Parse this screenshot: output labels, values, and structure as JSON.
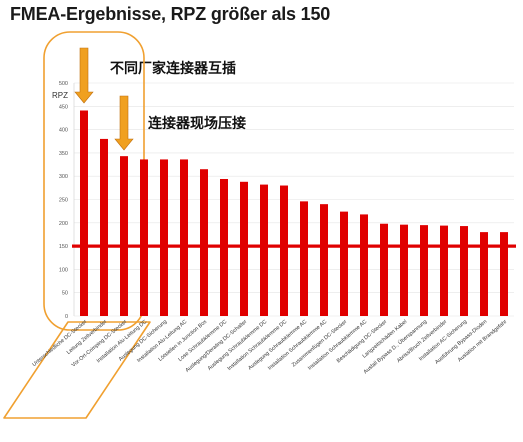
{
  "title": "FMEA-Ergebnisse, RPZ größer als  150",
  "annotations": {
    "connector_mix": "不同厂家连接器互插",
    "field_crimp": "连接器现场压接"
  },
  "colors": {
    "bar": "#e00000",
    "threshold": "#e00000",
    "highlight": "#f0a030",
    "arrow": "#f0a020"
  },
  "chart_data": {
    "type": "bar",
    "title": "FMEA-Ergebnisse, RPZ größer als  150",
    "ylabel": "RPZ",
    "xlabel": "",
    "ylim": [
      0,
      500
    ],
    "yticks": [
      0,
      50,
      100,
      150,
      200,
      250,
      300,
      350,
      400,
      450,
      500
    ],
    "grid": true,
    "threshold": 150,
    "categories": [
      "Unterschiedliche DC-Stecker",
      "Leitung Zellverbinder",
      "Vor-Ort-Crimping DC-Stecker",
      "Installation Alu-Leitung DC",
      "Auslegung DC-Sicherung",
      "Installation Alu-Leitung AC",
      "Lötstellen in Junction Box",
      "Lose Schraubklemme DC",
      "Auslegung/Derating DC-Schalter",
      "Auslegung Schraubklemme DC",
      "Installation Schraubklemme DC",
      "Auslegung Schraubklemme AC",
      "Installation Schraubklemme AC",
      "Zusammenfügen DC-Stecker",
      "Installation Schraubklemme AC",
      "Beschädigung DC-Stecker",
      "Langzeitschäden Kabel",
      "Ausfall Bypass D., Überspannung",
      "Abriss/Bruch Zellverbinder",
      "Installation AC-Sicherung",
      "Ausführung Bypass-Dioden",
      "Auslation mit Brandgefahr"
    ],
    "values": [
      441,
      380,
      343,
      336,
      336,
      336,
      315,
      294,
      288,
      282,
      280,
      246,
      240,
      224,
      218,
      198,
      196,
      195,
      194,
      193,
      180,
      180
    ]
  }
}
